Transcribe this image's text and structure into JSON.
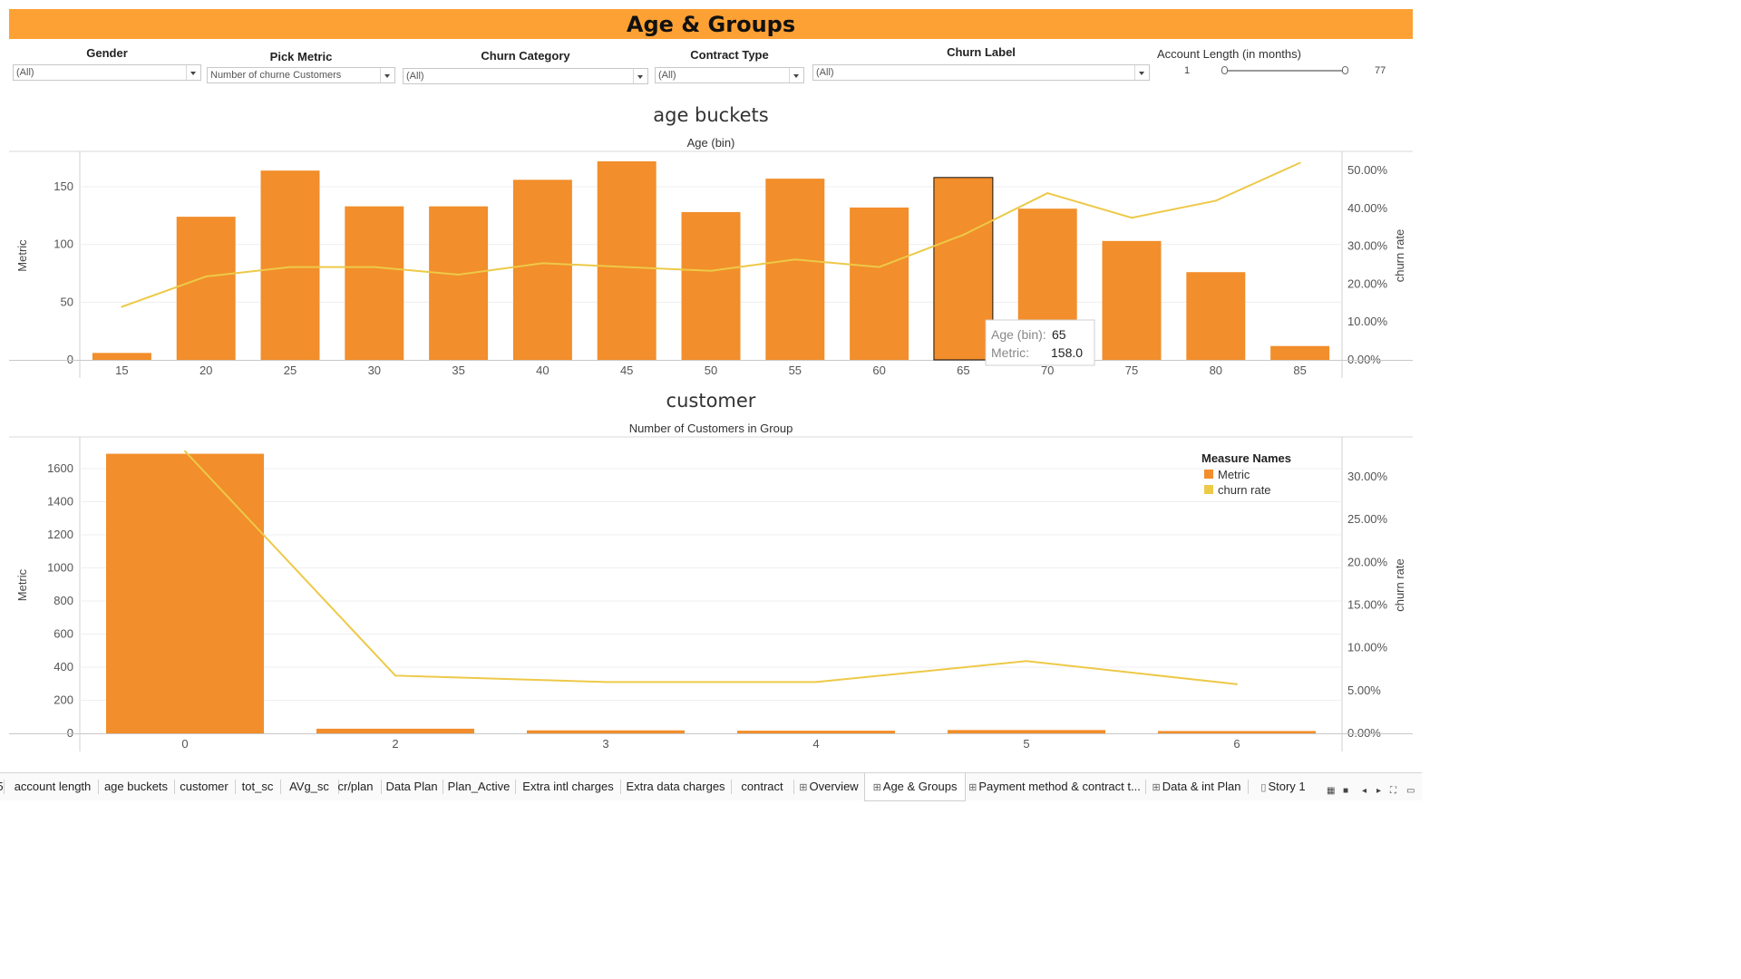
{
  "dashboard": {
    "title": "Age & Groups"
  },
  "filters": {
    "gender": {
      "label": "Gender",
      "value": "(All)"
    },
    "metric": {
      "label": "Pick Metric",
      "value": "Number of churne Customers"
    },
    "churn_category": {
      "label": "Churn Category",
      "value": "(All)"
    },
    "contract_type": {
      "label": "Contract Type",
      "value": "(All)"
    },
    "churn_label": {
      "label": "Churn Label",
      "value": "(All)"
    },
    "account_length": {
      "label": "Account Length (in months)",
      "min": "1",
      "max": "77"
    }
  },
  "colors": {
    "bar": "#f28e2b",
    "line": "#edc948",
    "accent": "#fea134"
  },
  "tooltip": {
    "key1": "Age (bin):",
    "val1": "65",
    "key2": "Metric:",
    "val2": "158.0"
  },
  "legend": {
    "title": "Measure Names",
    "items": [
      "Metric",
      "churn rate"
    ]
  },
  "chart_data": [
    {
      "type": "bar",
      "title": "age buckets",
      "subtitle": "Age (bin)",
      "ylabel": "Metric",
      "y2label": "churn rate",
      "categories": [
        "15",
        "20",
        "25",
        "30",
        "35",
        "40",
        "45",
        "50",
        "55",
        "60",
        "65",
        "70",
        "75",
        "80",
        "85"
      ],
      "series": [
        {
          "name": "Metric",
          "values": [
            6,
            124,
            164,
            133,
            133,
            156,
            172,
            128,
            157,
            132,
            158,
            131,
            103,
            76,
            12
          ]
        },
        {
          "name": "churn rate",
          "values": [
            0.14,
            0.22,
            0.245,
            0.245,
            0.225,
            0.255,
            0.245,
            0.235,
            0.265,
            0.245,
            0.33,
            0.44,
            0.375,
            0.42,
            0.52
          ]
        }
      ],
      "yticks": [
        "0",
        "50",
        "100",
        "150"
      ],
      "y2ticks": [
        "0.00%",
        "10.00%",
        "20.00%",
        "30.00%",
        "40.00%",
        "50.00%"
      ],
      "ylim": [
        0,
        180
      ],
      "y2lim": [
        0,
        0.5
      ],
      "highlight": "65"
    },
    {
      "type": "bar",
      "title": "customer",
      "subtitle": "Number of Customers in Group",
      "ylabel": "Metric",
      "y2label": "churn rate",
      "categories": [
        "0",
        "2",
        "3",
        "4",
        "5",
        "6"
      ],
      "series": [
        {
          "name": "Metric",
          "values": [
            1690,
            28,
            18,
            16,
            20,
            14
          ]
        },
        {
          "name": "churn rate",
          "values": [
            0.33,
            0.0675,
            0.06,
            0.06,
            0.0845,
            0.0575
          ]
        }
      ],
      "yticks": [
        "0",
        "200",
        "400",
        "600",
        "800",
        "1000",
        "1200",
        "1400",
        "1600"
      ],
      "y2ticks": [
        "0.00%",
        "5.00%",
        "10.00%",
        "15.00%",
        "20.00%",
        "25.00%",
        "30.00%"
      ],
      "ylim": [
        0,
        1600
      ],
      "y2lim": [
        0,
        0.3
      ]
    }
  ],
  "tabs": [
    {
      "label": "5",
      "icon": ""
    },
    {
      "label": "account length",
      "icon": ""
    },
    {
      "label": "age buckets",
      "icon": ""
    },
    {
      "label": "customer",
      "icon": ""
    },
    {
      "label": "tot_sc",
      "icon": ""
    },
    {
      "label": "AVg_sc",
      "icon": ""
    },
    {
      "label": "cr/plan",
      "icon": ""
    },
    {
      "label": "Data Plan",
      "icon": ""
    },
    {
      "label": "Plan_Active",
      "icon": ""
    },
    {
      "label": "Extra intl charges",
      "icon": ""
    },
    {
      "label": "Extra data charges",
      "icon": ""
    },
    {
      "label": "contract",
      "icon": ""
    },
    {
      "label": "Overview",
      "icon": "dashboard-icon"
    },
    {
      "label": "Age & Groups",
      "icon": "dashboard-icon",
      "active": true
    },
    {
      "label": "Payment method & contract t...",
      "icon": "dashboard-icon"
    },
    {
      "label": "Data & int Plan",
      "icon": "dashboard-icon"
    },
    {
      "label": "Story 1",
      "icon": "story-icon"
    }
  ]
}
